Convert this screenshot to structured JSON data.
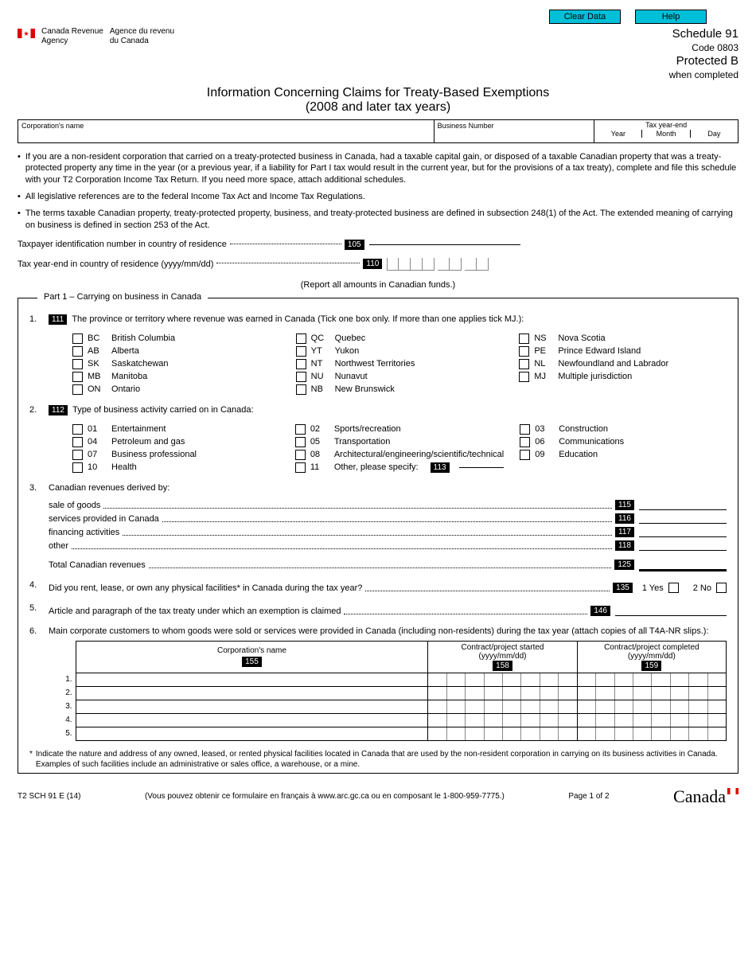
{
  "buttons": {
    "clear": "Clear Data",
    "help": "Help"
  },
  "agency": {
    "en": "Canada Revenue\nAgency",
    "fr": "Agence du revenu\ndu Canada"
  },
  "sched": {
    "line1": "Schedule 91",
    "line2": "Code 0803",
    "line3": "Protected B",
    "line4": "when completed"
  },
  "title1": "Information Concerning Claims for Treaty-Based Exemptions",
  "title2": "(2008 and later tax years)",
  "idrow": {
    "corp": "Corporation's name",
    "bn": "Business Number",
    "ty": "Tax year-end",
    "y": "Year",
    "m": "Month",
    "d": "Day"
  },
  "instr": [
    "If you are a non-resident corporation that carried on a treaty-protected business in Canada, had a taxable capital gain, or disposed of a taxable Canadian property that was a treaty-protected property any time in the year (or a previous year, if a liability for Part I tax would result in the current year, but for the provisions of a tax treaty), complete and file this schedule with your T2 Corporation Income Tax Return. If you need more space, attach additional schedules.",
    "All legislative references are to the federal Income Tax Act and Income Tax Regulations.",
    "The terms taxable Canadian property, treaty-protected property, business, and treaty-protected business are defined in subsection 248(1) of the Act. The extended meaning of carrying on business is defined in section 253 of the Act."
  ],
  "line105": {
    "label": "Taxpayer identification number in country of residence",
    "code": "105"
  },
  "line110": {
    "label": "Tax year-end in country of residence (yyyy/mm/dd)",
    "code": "110"
  },
  "report_note": "(Report all amounts in Canadian funds.)",
  "part1_title": "Part 1 – Carrying on business in Canada",
  "q1": {
    "code": "111",
    "text": "The province or territory where revenue was earned in Canada (Tick one box only. If more than one applies tick MJ.):"
  },
  "provs": {
    "col1": [
      [
        "BC",
        "British Columbia"
      ],
      [
        "AB",
        "Alberta"
      ],
      [
        "SK",
        "Saskatchewan"
      ],
      [
        "MB",
        "Manitoba"
      ],
      [
        "ON",
        "Ontario"
      ]
    ],
    "col2": [
      [
        "QC",
        "Quebec"
      ],
      [
        "YT",
        "Yukon"
      ],
      [
        "NT",
        "Northwest Territories"
      ],
      [
        "NU",
        "Nunavut"
      ],
      [
        "NB",
        "New Brunswick"
      ]
    ],
    "col3": [
      [
        "NS",
        "Nova Scotia"
      ],
      [
        "PE",
        "Prince Edward Island"
      ],
      [
        "NL",
        "Newfoundland and Labrador"
      ],
      [
        "MJ",
        "Multiple jurisdiction"
      ]
    ]
  },
  "q2": {
    "code": "112",
    "text": "Type of business activity carried on in Canada:"
  },
  "acts": {
    "col1": [
      [
        "01",
        "Entertainment"
      ],
      [
        "04",
        "Petroleum and gas"
      ],
      [
        "07",
        "Business professional"
      ],
      [
        "10",
        "Health"
      ]
    ],
    "col2": [
      [
        "02",
        "Sports/recreation"
      ],
      [
        "05",
        "Transportation"
      ],
      [
        "08",
        "Architectural/engineering/scientific/technical"
      ],
      [
        "11",
        "Other, please specify:"
      ]
    ],
    "col3": [
      [
        "03",
        "Construction"
      ],
      [
        "06",
        "Communications"
      ],
      [
        "09",
        "Education"
      ]
    ]
  },
  "q2_other_code": "113",
  "q3": {
    "text": "Canadian revenues derived by:",
    "lines": [
      [
        "sale of goods",
        "115"
      ],
      [
        "services provided in Canada",
        "116"
      ],
      [
        "financing activities",
        "117"
      ],
      [
        "other",
        "118"
      ]
    ],
    "total": [
      "Total Canadian revenues",
      "125"
    ]
  },
  "q4": {
    "text": "Did you rent, lease, or own any physical facilities* in Canada during the tax year?",
    "code": "135",
    "yes": "1 Yes",
    "no": "2 No"
  },
  "q5": {
    "text": "Article and paragraph of the tax treaty under which an exemption is claimed",
    "code": "146"
  },
  "q6": {
    "text": "Main corporate customers to whom goods were sold or services were provided in Canada (including non-residents) during the tax year (attach copies of all T4A-NR slips.):"
  },
  "tbl": {
    "h1": "Corporation's name",
    "h2": "Contract/project started\n(yyyy/mm/dd)",
    "h3": "Contract/project completed\n(yyyy/mm/dd)",
    "c1": "155",
    "c2": "158",
    "c3": "159"
  },
  "footnote": "Indicate the nature and address of any owned, leased, or rented physical facilities located in Canada that are used by the non-resident corporation in carrying on its business activities in Canada. Examples of such facilities include an administrative or sales office, a warehouse, or a mine.",
  "footer": {
    "form": "T2 SCH 91 E (14)",
    "fr": "(Vous pouvez obtenir ce formulaire en français à www.arc.gc.ca ou en composant le 1-800-959-7775.)",
    "page": "Page 1 of 2",
    "wm": "Canada"
  }
}
